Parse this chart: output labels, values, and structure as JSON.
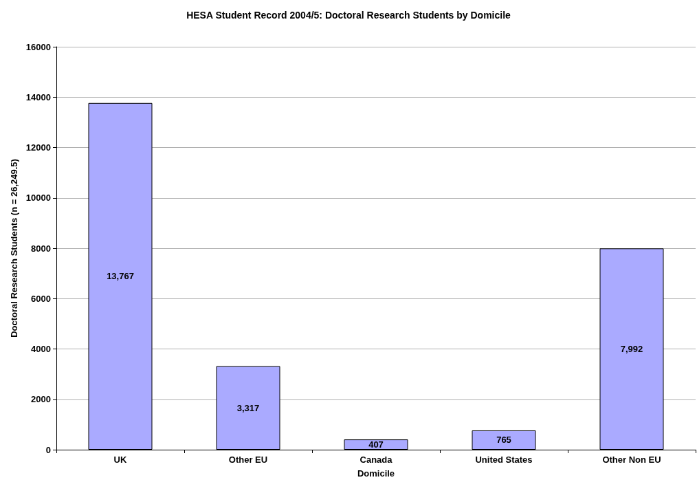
{
  "chart_data": {
    "type": "bar",
    "title": "HESA Student Record 2004/5: Doctoral Research Students by Domicile",
    "xlabel": "Domicile",
    "ylabel": "Doctoral Research Students (n = 26,249.5)",
    "categories": [
      "UK",
      "Other EU",
      "Canada",
      "United States",
      "Other Non EU"
    ],
    "values": [
      13767,
      3317,
      407,
      765,
      7992
    ],
    "value_labels": [
      "13,767",
      "3,317",
      "407",
      "765",
      "7,992"
    ],
    "color": "#aaaaff",
    "ylim": [
      0,
      16000
    ],
    "yticks": [
      0,
      2000,
      4000,
      6000,
      8000,
      10000,
      12000,
      14000,
      16000
    ],
    "grid": "y"
  }
}
